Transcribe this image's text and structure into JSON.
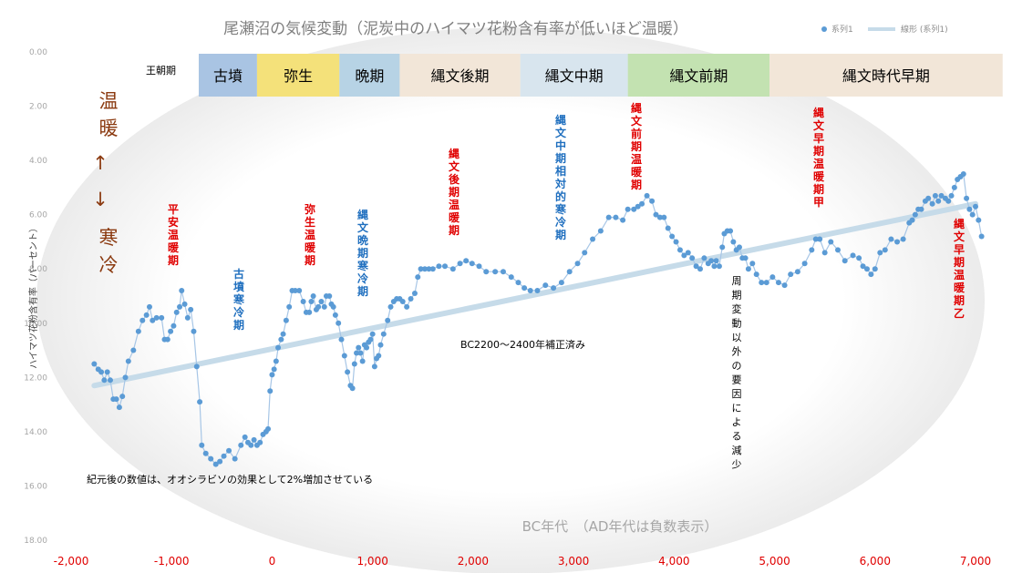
{
  "chart_data": {
    "type": "scatter",
    "title": "尾瀬沼の気候変動（泥炭中のハイマツ花粉含有率が低いほど温暖）",
    "xlabel": "BC年代　（AD年代は負数表示）",
    "ylabel": "ハイマツ花粉含有率（パーセント）",
    "xlim": [
      -2000,
      7000
    ],
    "ylim": [
      0,
      18
    ],
    "y_inverted": true,
    "x_ticks": [
      "-2,000",
      "-1,000",
      "0",
      "1,000",
      "2,000",
      "3,000",
      "4,000",
      "5,000",
      "6,000",
      "7,000"
    ],
    "y_ticks": [
      "0.00",
      "2.00",
      "4.00",
      "6.00",
      "8.00",
      "10.00",
      "12.00",
      "14.00",
      "16.00",
      "18.00"
    ],
    "grid": false,
    "legend_position": "top-right",
    "legend": [
      "系列1",
      "線形 (系列1)"
    ],
    "series": [
      {
        "name": "系列1",
        "color": "#5b9bd5",
        "points": [
          [
            -1770,
            11.5
          ],
          [
            -1730,
            11.7
          ],
          [
            -1700,
            11.8
          ],
          [
            -1670,
            12.1
          ],
          [
            -1640,
            11.8
          ],
          [
            -1610,
            12.1
          ],
          [
            -1580,
            12.8
          ],
          [
            -1550,
            12.8
          ],
          [
            -1520,
            13.1
          ],
          [
            -1490,
            12.7
          ],
          [
            -1460,
            12.0
          ],
          [
            -1430,
            11.4
          ],
          [
            -1380,
            11.0
          ],
          [
            -1330,
            10.3
          ],
          [
            -1290,
            9.9
          ],
          [
            -1250,
            9.7
          ],
          [
            -1220,
            9.4
          ],
          [
            -1190,
            9.9
          ],
          [
            -1150,
            9.8
          ],
          [
            -1100,
            9.8
          ],
          [
            -1070,
            10.6
          ],
          [
            -1040,
            10.6
          ],
          [
            -1010,
            10.3
          ],
          [
            -980,
            10.1
          ],
          [
            -950,
            9.6
          ],
          [
            -920,
            9.4
          ],
          [
            -900,
            8.8
          ],
          [
            -870,
            9.3
          ],
          [
            -840,
            9.8
          ],
          [
            -810,
            9.5
          ],
          [
            -780,
            10.3
          ],
          [
            -750,
            11.6
          ],
          [
            -720,
            12.9
          ],
          [
            -700,
            14.5
          ],
          [
            -660,
            14.8
          ],
          [
            -610,
            15.0
          ],
          [
            -560,
            15.2
          ],
          [
            -520,
            15.1
          ],
          [
            -480,
            14.9
          ],
          [
            -430,
            14.7
          ],
          [
            -370,
            15.0
          ],
          [
            -310,
            14.5
          ],
          [
            -270,
            14.2
          ],
          [
            -240,
            14.4
          ],
          [
            -210,
            14.5
          ],
          [
            -180,
            14.3
          ],
          [
            -150,
            14.5
          ],
          [
            -120,
            14.4
          ],
          [
            -90,
            14.1
          ],
          [
            -60,
            14.0
          ],
          [
            -40,
            13.9
          ],
          [
            -20,
            12.5
          ],
          [
            0,
            11.9
          ],
          [
            20,
            11.7
          ],
          [
            40,
            11.4
          ],
          [
            60,
            10.9
          ],
          [
            90,
            10.6
          ],
          [
            110,
            10.4
          ],
          [
            140,
            9.9
          ],
          [
            170,
            9.4
          ],
          [
            200,
            8.8
          ],
          [
            230,
            8.8
          ],
          [
            270,
            8.8
          ],
          [
            310,
            9.2
          ],
          [
            340,
            9.6
          ],
          [
            370,
            9.6
          ],
          [
            390,
            9.2
          ],
          [
            410,
            9.0
          ],
          [
            440,
            9.5
          ],
          [
            460,
            9.4
          ],
          [
            490,
            9.2
          ],
          [
            520,
            9.4
          ],
          [
            540,
            9.0
          ],
          [
            570,
            9.0
          ],
          [
            590,
            9.3
          ],
          [
            610,
            9.4
          ],
          [
            630,
            9.7
          ],
          [
            660,
            10.0
          ],
          [
            690,
            10.6
          ],
          [
            720,
            11.2
          ],
          [
            750,
            11.8
          ],
          [
            780,
            12.3
          ],
          [
            800,
            12.4
          ],
          [
            820,
            11.5
          ],
          [
            840,
            11.1
          ],
          [
            860,
            10.9
          ],
          [
            880,
            11.1
          ],
          [
            900,
            11.4
          ],
          [
            920,
            10.8
          ],
          [
            940,
            10.9
          ],
          [
            960,
            10.7
          ],
          [
            980,
            10.6
          ],
          [
            1000,
            10.4
          ],
          [
            1020,
            11.6
          ],
          [
            1040,
            11.3
          ],
          [
            1060,
            11.2
          ],
          [
            1080,
            10.8
          ],
          [
            1110,
            10.4
          ],
          [
            1150,
            9.9
          ],
          [
            1180,
            9.4
          ],
          [
            1210,
            9.2
          ],
          [
            1240,
            9.1
          ],
          [
            1270,
            9.1
          ],
          [
            1300,
            9.2
          ],
          [
            1340,
            9.4
          ],
          [
            1380,
            9.1
          ],
          [
            1420,
            8.9
          ],
          [
            1450,
            8.3
          ],
          [
            1480,
            8.0
          ],
          [
            1520,
            8.0
          ],
          [
            1560,
            8.0
          ],
          [
            1600,
            8.0
          ],
          [
            1660,
            7.9
          ],
          [
            1720,
            7.9
          ],
          [
            1800,
            8.0
          ],
          [
            1870,
            7.8
          ],
          [
            1930,
            7.7
          ],
          [
            1990,
            7.8
          ],
          [
            2060,
            7.9
          ],
          [
            2130,
            8.1
          ],
          [
            2220,
            8.1
          ],
          [
            2300,
            8.1
          ],
          [
            2380,
            8.3
          ],
          [
            2450,
            8.5
          ],
          [
            2510,
            8.7
          ],
          [
            2570,
            8.8
          ],
          [
            2640,
            8.8
          ],
          [
            2720,
            8.6
          ],
          [
            2800,
            8.7
          ],
          [
            2880,
            8.5
          ],
          [
            2960,
            8.1
          ],
          [
            3040,
            7.8
          ],
          [
            3110,
            7.4
          ],
          [
            3190,
            6.9
          ],
          [
            3270,
            6.6
          ],
          [
            3350,
            6.1
          ],
          [
            3420,
            6.1
          ],
          [
            3490,
            6.2
          ],
          [
            3540,
            5.8
          ],
          [
            3600,
            5.8
          ],
          [
            3640,
            5.7
          ],
          [
            3680,
            5.6
          ],
          [
            3730,
            5.3
          ],
          [
            3780,
            5.5
          ],
          [
            3820,
            6.0
          ],
          [
            3860,
            6.1
          ],
          [
            3900,
            6.1
          ],
          [
            3940,
            6.5
          ],
          [
            3980,
            6.8
          ],
          [
            4020,
            7.0
          ],
          [
            4060,
            7.3
          ],
          [
            4100,
            7.5
          ],
          [
            4140,
            7.4
          ],
          [
            4180,
            7.6
          ],
          [
            4220,
            7.9
          ],
          [
            4260,
            8.0
          ],
          [
            4300,
            7.6
          ],
          [
            4340,
            7.8
          ],
          [
            4370,
            7.7
          ],
          [
            4400,
            7.9
          ],
          [
            4420,
            7.7
          ],
          [
            4450,
            7.9
          ],
          [
            4480,
            7.2
          ],
          [
            4500,
            6.7
          ],
          [
            4530,
            6.6
          ],
          [
            4560,
            6.6
          ],
          [
            4590,
            7.0
          ],
          [
            4620,
            7.3
          ],
          [
            4650,
            7.2
          ],
          [
            4680,
            7.6
          ],
          [
            4710,
            7.6
          ],
          [
            4740,
            8.0
          ],
          [
            4780,
            7.8
          ],
          [
            4820,
            8.2
          ],
          [
            4870,
            8.5
          ],
          [
            4920,
            8.5
          ],
          [
            4980,
            8.3
          ],
          [
            5040,
            8.5
          ],
          [
            5100,
            8.6
          ],
          [
            5160,
            8.2
          ],
          [
            5230,
            8.1
          ],
          [
            5300,
            7.8
          ],
          [
            5370,
            7.3
          ],
          [
            5410,
            6.9
          ],
          [
            5450,
            6.9
          ],
          [
            5500,
            7.4
          ],
          [
            5560,
            7.0
          ],
          [
            5630,
            7.3
          ],
          [
            5700,
            7.7
          ],
          [
            5780,
            7.5
          ],
          [
            5840,
            7.6
          ],
          [
            5880,
            7.9
          ],
          [
            5920,
            8.0
          ],
          [
            5960,
            8.2
          ],
          [
            6000,
            8.0
          ],
          [
            6050,
            7.4
          ],
          [
            6100,
            7.3
          ],
          [
            6160,
            6.9
          ],
          [
            6220,
            7.0
          ],
          [
            6280,
            6.9
          ],
          [
            6340,
            6.3
          ],
          [
            6370,
            6.2
          ],
          [
            6400,
            6.0
          ],
          [
            6430,
            5.8
          ],
          [
            6460,
            5.8
          ],
          [
            6500,
            5.5
          ],
          [
            6530,
            5.4
          ],
          [
            6570,
            5.6
          ],
          [
            6600,
            5.3
          ],
          [
            6630,
            5.5
          ],
          [
            6660,
            5.3
          ],
          [
            6700,
            5.4
          ],
          [
            6730,
            5.5
          ],
          [
            6760,
            5.3
          ],
          [
            6790,
            5.0
          ],
          [
            6820,
            4.7
          ],
          [
            6850,
            4.6
          ],
          [
            6880,
            4.5
          ],
          [
            6910,
            5.4
          ],
          [
            6940,
            5.8
          ],
          [
            6970,
            6.0
          ],
          [
            7000,
            5.7
          ],
          [
            7030,
            6.2
          ],
          [
            7060,
            6.8
          ]
        ]
      },
      {
        "name": "線形 (系列1)",
        "color": "#c6dbe9",
        "line_points": [
          [
            -1770,
            12.3
          ],
          [
            7000,
            5.6
          ]
        ]
      }
    ],
    "periods_header": "王朝期",
    "periods": [
      {
        "label": "古墳",
        "from": -730,
        "to": -150,
        "color": "#a9c4e3"
      },
      {
        "label": "弥生",
        "from": -150,
        "to": 670,
        "color": "#f4e17a"
      },
      {
        "label": "晩期",
        "from": 670,
        "to": 1270,
        "color": "#b7d3e5"
      },
      {
        "label": "縄文後期",
        "from": 1270,
        "to": 2470,
        "color": "#f2e6d8"
      },
      {
        "label": "縄文中期",
        "from": 2470,
        "to": 3540,
        "color": "#d8e5ee"
      },
      {
        "label": "縄文前期",
        "from": 3540,
        "to": 4950,
        "color": "#c3e2b1"
      },
      {
        "label": "縄文時代早期",
        "from": 4950,
        "to": 7270,
        "color": "#f2e6d8"
      }
    ],
    "side_labels": {
      "warm": "温暖",
      "up": "↑",
      "down": "↓",
      "cold": "寒冷"
    },
    "annotations": [
      {
        "text": "平安温暖期",
        "color": "#e00000"
      },
      {
        "text": "古墳寒冷期",
        "color": "#1f6fbf"
      },
      {
        "text": "弥生温暖期",
        "color": "#e00000"
      },
      {
        "text": "縄文晩期寒冷期",
        "color": "#1f6fbf"
      },
      {
        "text": "縄文後期温暖期",
        "color": "#e00000"
      },
      {
        "text": "縄文中期相対的寒冷期",
        "color": "#1f6fbf"
      },
      {
        "text": "縄文前期温暖期",
        "color": "#e00000"
      },
      {
        "text": "縄文早期温暖期甲",
        "color": "#e00000"
      },
      {
        "text": "縄文早期温暖期乙",
        "color": "#e00000"
      },
      {
        "text": "周期変動以外の要因による減少",
        "color": "#000000"
      }
    ],
    "notes": {
      "correction": "BC2200～2400年補正済み",
      "ad_note": "紀元後の数値は、オオシラビソの効果として2%増加させている"
    }
  }
}
